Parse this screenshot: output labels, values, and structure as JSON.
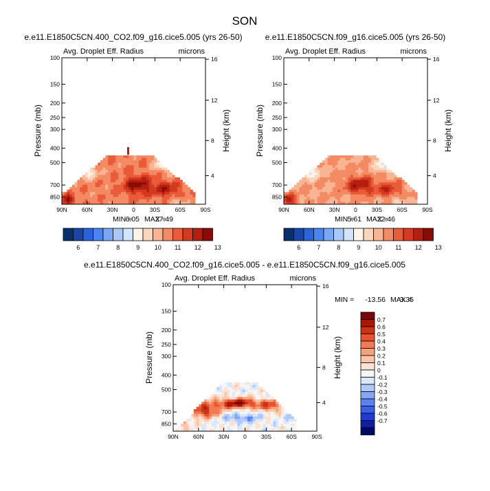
{
  "figure": {
    "title": "SON",
    "colors": {
      "main_scale": [
        "#08306b",
        "#1a46a8",
        "#2b62d9",
        "#4a84f0",
        "#78a8f5",
        "#a8c8fa",
        "#d2e4fc",
        "#fdf3e6",
        "#fbd6bf",
        "#f8b493",
        "#f38a63",
        "#ea5b3a",
        "#d43a1f",
        "#b41f10",
        "#8a0c06"
      ],
      "diff_scale": [
        "#000a66",
        "#0d1ea8",
        "#1f3bd6",
        "#3a5ee8",
        "#5c82f0",
        "#85a6f5",
        "#b0c9fa",
        "#dbe7fc",
        "#f5f5f5",
        "#fde2d2",
        "#fbc5a8",
        "#f7a27e",
        "#f17a54",
        "#e6532f",
        "#cc3214",
        "#a8180a",
        "#7a0505"
      ]
    }
  },
  "chart_data": [
    {
      "type": "heatmap",
      "name": "panel-1",
      "title": "e.e11.E1850C5CN.400_CO2.f09_g16.cice5.005 (yrs 26-50)",
      "subtitle_left": "Avg. Droplet Eff. Radius",
      "subtitle_right": "microns",
      "ylabel": "Pressure (mb)",
      "ylabel_right": "Height (km)",
      "x_ticks": [
        "90N",
        "60N",
        "30N",
        "0",
        "30S",
        "60S",
        "90S"
      ],
      "y_ticks": [
        "100",
        "150",
        "200",
        "250",
        "300",
        "400",
        "500",
        "700",
        "850"
      ],
      "y_ticks_right": [
        "16",
        "12",
        "8",
        "4"
      ],
      "stats": {
        "min_label": "MIN =",
        "min": "6.05",
        "max_label": "MAX =",
        "max": "27.49"
      },
      "colorbar_labels": [
        "6",
        "7",
        "8",
        "9",
        "10",
        "11",
        "12",
        "13"
      ]
    },
    {
      "type": "heatmap",
      "name": "panel-2",
      "title": "e.e11.E1850C5CN.f09_g16.cice5.005 (yrs 26-50)",
      "subtitle_left": "Avg. Droplet Eff. Radius",
      "subtitle_right": "microns",
      "ylabel": "Pressure (mb)",
      "ylabel_right": "Height (km)",
      "x_ticks": [
        "90N",
        "60N",
        "30N",
        "0",
        "30S",
        "60S",
        "90S"
      ],
      "y_ticks": [
        "100",
        "150",
        "200",
        "250",
        "300",
        "400",
        "500",
        "700",
        "850"
      ],
      "y_ticks_right": [
        "16",
        "12",
        "8",
        "4"
      ],
      "stats": {
        "min_label": "MIN =",
        "min": "5.61",
        "max_label": "MAX =",
        "max": "22.46"
      },
      "colorbar_labels": [
        "6",
        "7",
        "8",
        "9",
        "10",
        "11",
        "12",
        "13"
      ]
    },
    {
      "type": "heatmap",
      "name": "panel-diff",
      "title": "e.e11.E1850C5CN.400_CO2.f09_g16.cice5.005 - e.e11.E1850C5CN.f09_g16.cice5.005",
      "subtitle_left": "Avg. Droplet Eff. Radius",
      "subtitle_right": "microns",
      "ylabel": "Pressure (mb)",
      "ylabel_right": "Height (km)",
      "x_ticks": [
        "90N",
        "60N",
        "30N",
        "0",
        "30S",
        "60S",
        "90S"
      ],
      "y_ticks": [
        "100",
        "150",
        "200",
        "250",
        "300",
        "400",
        "500",
        "700",
        "850"
      ],
      "y_ticks_right": [
        "16",
        "12",
        "8",
        "4"
      ],
      "stats": {
        "min_label": "MIN =",
        "min": "-13.56",
        "max_label": "MAX =",
        "max": "3.35"
      },
      "colorbar_labels": [
        "0.7",
        "0.6",
        "0.5",
        "0.4",
        "0.3",
        "0.2",
        "0.1",
        "0",
        "-0.1",
        "-0.2",
        "-0.3",
        "-0.4",
        "-0.5",
        "-0.6",
        "-0.7"
      ]
    }
  ]
}
